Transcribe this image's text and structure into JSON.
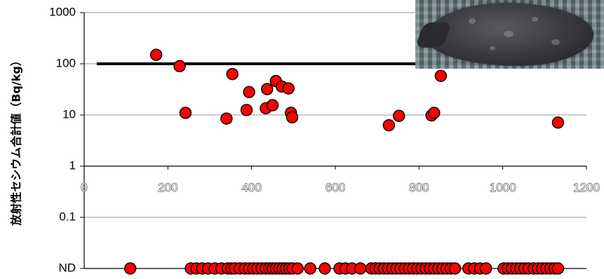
{
  "chart_data": {
    "type": "scatter",
    "title": "",
    "ylabel": "放射性セシウム合計値（Bq/kg）",
    "xlabel": "",
    "x_ticks": [
      "0",
      "200",
      "400",
      "600",
      "800",
      "1000",
      "1200"
    ],
    "y_ticks": [
      "1000",
      "100",
      "10",
      "1",
      "0.1",
      "ND"
    ],
    "xlim": [
      0,
      1200
    ],
    "ylim": [
      0.01,
      1000
    ],
    "y_scale": "log",
    "grid": true,
    "reference_line": {
      "y": 100,
      "x_range": [
        30,
        850
      ]
    },
    "marker_color": "#ff0000",
    "marker_edge_color": "#000000",
    "series": [
      {
        "values": [
          {
            "x": 172,
            "y": 150
          },
          {
            "x": 228,
            "y": 90
          },
          {
            "x": 242,
            "y": 11
          },
          {
            "x": 340,
            "y": 8.5
          },
          {
            "x": 354,
            "y": 63
          },
          {
            "x": 388,
            "y": 12.5
          },
          {
            "x": 394,
            "y": 28
          },
          {
            "x": 434,
            "y": 13.5
          },
          {
            "x": 437,
            "y": 32
          },
          {
            "x": 450,
            "y": 15.5
          },
          {
            "x": 458,
            "y": 46
          },
          {
            "x": 472,
            "y": 36
          },
          {
            "x": 488,
            "y": 33
          },
          {
            "x": 494,
            "y": 11
          },
          {
            "x": 497,
            "y": 9
          },
          {
            "x": 728,
            "y": 6.3
          },
          {
            "x": 752,
            "y": 9.6
          },
          {
            "x": 830,
            "y": 9.8
          },
          {
            "x": 836,
            "y": 11
          },
          {
            "x": 852,
            "y": 58
          },
          {
            "x": 1132,
            "y": 7.1
          }
        ]
      },
      {
        "label": "ND",
        "x": [
          110,
          255,
          268,
          282,
          296,
          312,
          328,
          343,
          352,
          360,
          372,
          384,
          394,
          404,
          414,
          424,
          434,
          442,
          450,
          458,
          466,
          474,
          482,
          490,
          498,
          510,
          540,
          575,
          610,
          624,
          640,
          660,
          686,
          696,
          706,
          716,
          726,
          736,
          746,
          756,
          766,
          776,
          786,
          796,
          806,
          816,
          826,
          836,
          846,
          856,
          866,
          876,
          886,
          918,
          932,
          946,
          960,
          1002,
          1012,
          1022,
          1032,
          1042,
          1052,
          1062,
          1074,
          1084,
          1094,
          1104,
          1114,
          1124,
          1132
        ]
      }
    ]
  }
}
